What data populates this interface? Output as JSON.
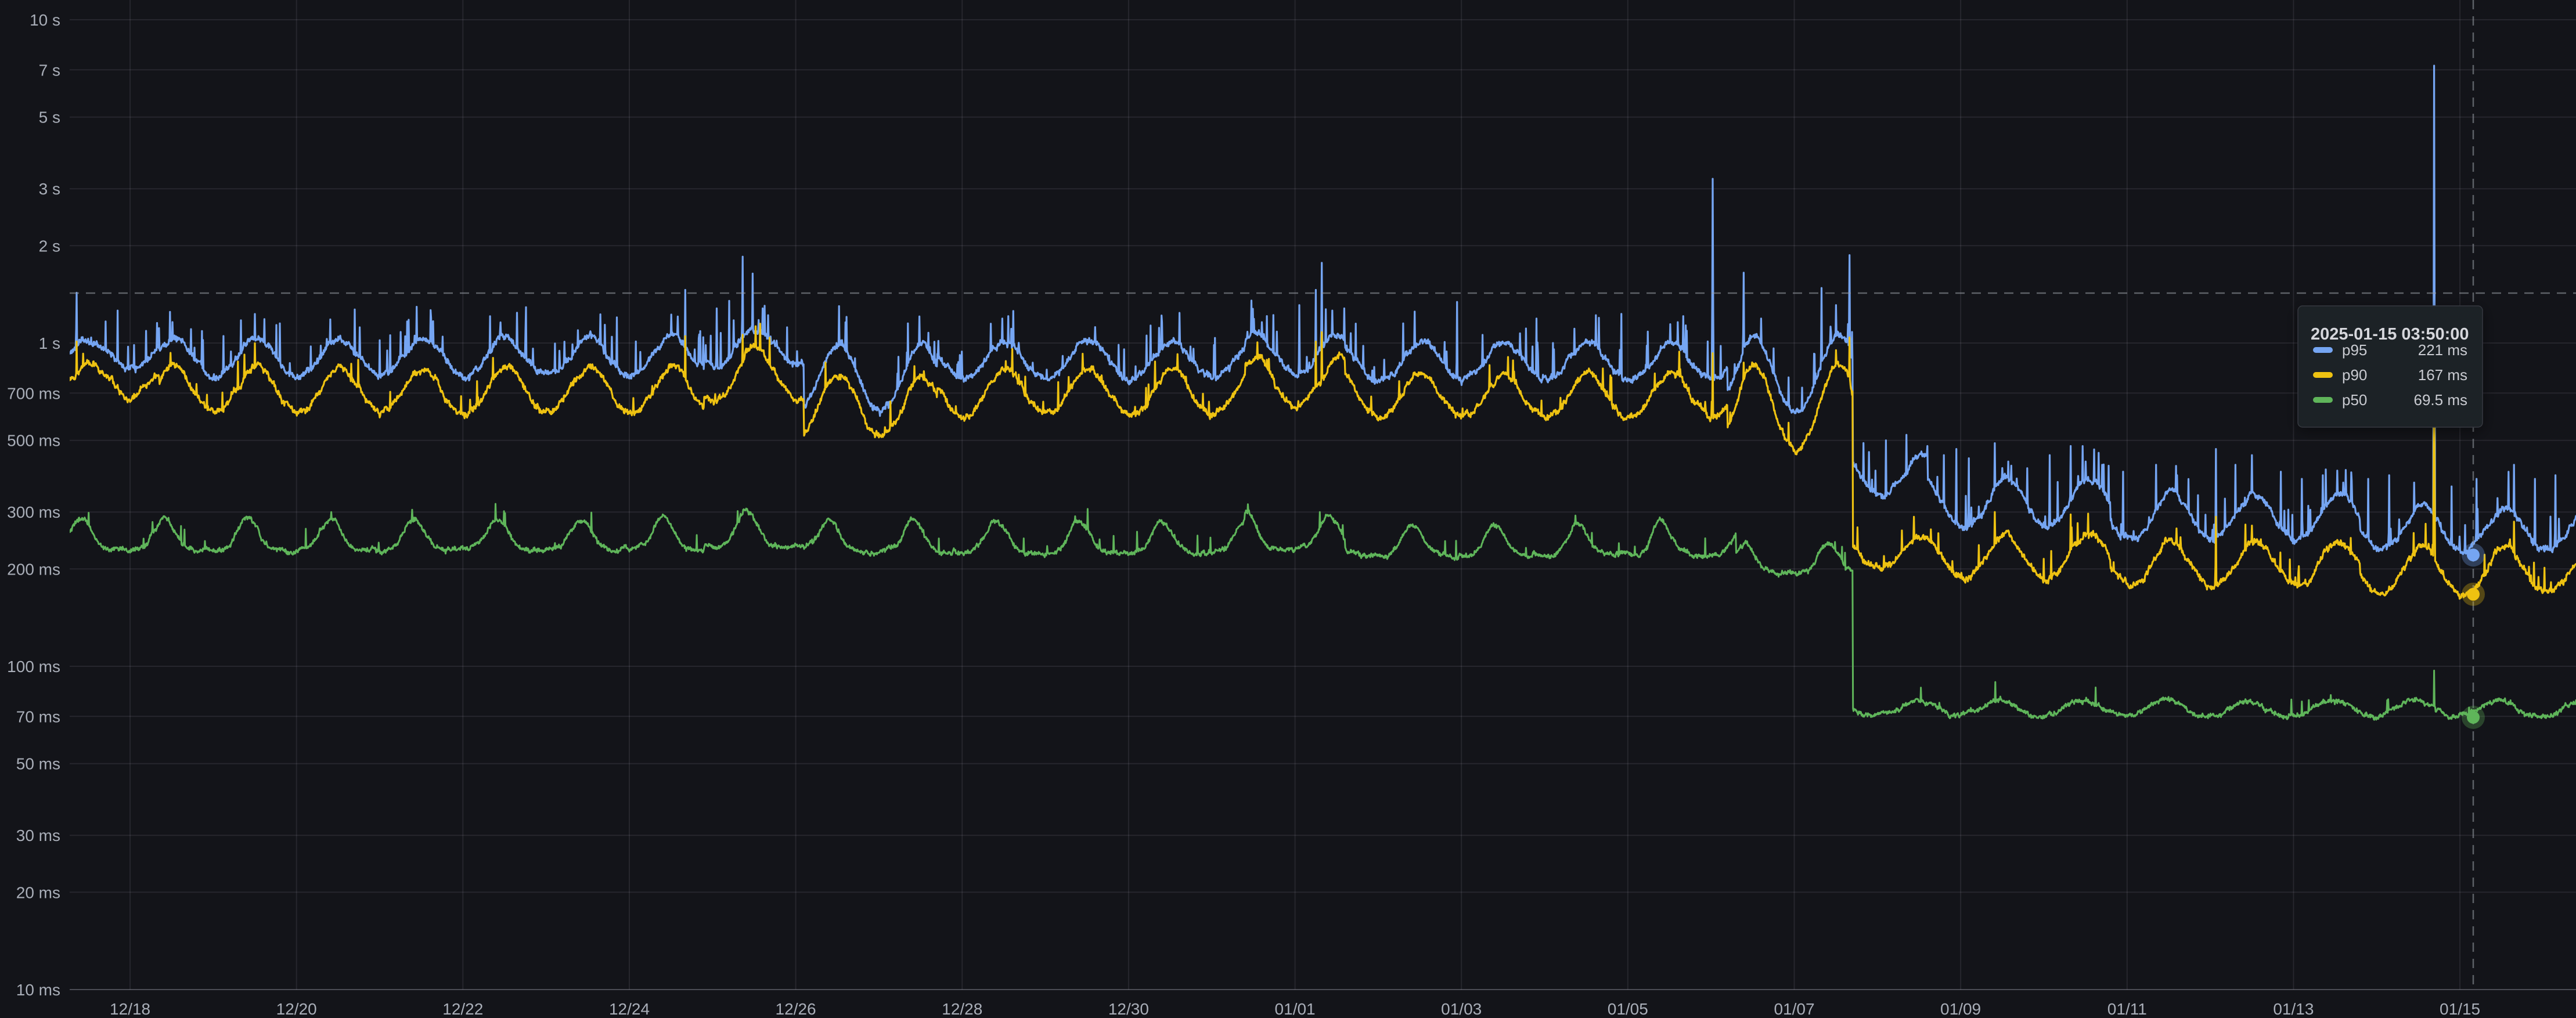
{
  "theme": {
    "background": "#131419",
    "grid_color": "rgba(204,210,222,0.10)",
    "axis_text_color": "#A9AEB8",
    "crosshair_color": "#9AA0A8",
    "tooltip_background": "#1E2127",
    "tooltip_border": "#35383F",
    "tooltip_text": "#D6D7DC"
  },
  "chart_data": {
    "type": "line",
    "title": "",
    "legend_position": "none",
    "grid": true,
    "x_axis": {
      "unit": "date",
      "range_days": [
        -0.726,
        29.395
      ],
      "ticks": [
        {
          "label": "12/18",
          "day": 0
        },
        {
          "label": "12/20",
          "day": 2
        },
        {
          "label": "12/22",
          "day": 4
        },
        {
          "label": "12/24",
          "day": 6
        },
        {
          "label": "12/26",
          "day": 8
        },
        {
          "label": "12/28",
          "day": 10
        },
        {
          "label": "12/30",
          "day": 12
        },
        {
          "label": "01/01",
          "day": 14
        },
        {
          "label": "01/03",
          "day": 16
        },
        {
          "label": "01/05",
          "day": 18
        },
        {
          "label": "01/07",
          "day": 20
        },
        {
          "label": "01/09",
          "day": 22
        },
        {
          "label": "01/11",
          "day": 24
        },
        {
          "label": "01/13",
          "day": 26
        },
        {
          "label": "01/15",
          "day": 28
        }
      ]
    },
    "y_axis": {
      "scale": "log10",
      "unit": "ms",
      "range_ms": [
        11500,
        8.5
      ],
      "ticks": [
        {
          "label": "10 s",
          "ms": 10000
        },
        {
          "label": "7 s",
          "ms": 7000
        },
        {
          "label": "5 s",
          "ms": 5000
        },
        {
          "label": "3 s",
          "ms": 3000
        },
        {
          "label": "2 s",
          "ms": 2000
        },
        {
          "label": "1 s",
          "ms": 1000
        },
        {
          "label": "700 ms",
          "ms": 700
        },
        {
          "label": "500 ms",
          "ms": 500
        },
        {
          "label": "300 ms",
          "ms": 300
        },
        {
          "label": "200 ms",
          "ms": 200
        },
        {
          "label": "100 ms",
          "ms": 100
        },
        {
          "label": "70 ms",
          "ms": 70
        },
        {
          "label": "50 ms",
          "ms": 50
        },
        {
          "label": "30 ms",
          "ms": 30
        },
        {
          "label": "20 ms",
          "ms": 20
        },
        {
          "label": "10 ms",
          "ms": 10
        }
      ]
    },
    "series": [
      {
        "name": "p95",
        "color": "#75A5F2",
        "line_width": 3.2,
        "seed": 11,
        "noise": 0.021,
        "micro_spike_prob": 0.05,
        "micro_spike_gain": 0.3,
        "segments": [
          {
            "t": [
              -0.73,
              0.35
            ],
            "low": 840,
            "high": 1020,
            "peak_hour": 12.5,
            "width_h": 5
          },
          {
            "t": [
              0.35,
              6.9
            ],
            "low": 775,
            "high": 1040,
            "peak_hour": 12.5,
            "width_h": 5
          },
          {
            "t": [
              6.9,
              8.1
            ],
            "low": 830,
            "high": 1120,
            "peak_hour": 12.5,
            "width_h": 5
          },
          {
            "t": [
              8.1,
              9.7
            ],
            "low": 600,
            "high": 1000,
            "peak_hour": 12.5,
            "width_h": 5
          },
          {
            "t": [
              9.7,
              13.4
            ],
            "low": 760,
            "high": 1020,
            "peak_hour": 12.5,
            "width_h": 5
          },
          {
            "t": [
              13.4,
              14.6
            ],
            "low": 790,
            "high": 1080,
            "peak_hour": 12.5,
            "width_h": 5
          },
          {
            "t": [
              14.6,
              19.2
            ],
            "low": 755,
            "high": 1005,
            "peak_hour": 12.5,
            "width_h": 5
          },
          {
            "t": [
              19.2,
              20.705
            ],
            "low": 580,
            "high": 1060,
            "peak_hour": 12.5,
            "width_h": 5
          },
          {
            "t": [
              20.705,
              21.6
            ],
            "low": 330,
            "high": 455,
            "peak_hour": 13,
            "width_h": 5
          },
          {
            "t": [
              21.6,
              23.8
            ],
            "low": 262,
            "high": 385,
            "peak_hour": 13,
            "width_h": 5
          },
          {
            "t": [
              23.8,
              26.8
            ],
            "low": 240,
            "high": 345,
            "peak_hour": 13,
            "width_h": 5
          },
          {
            "t": [
              26.8,
              29.4
            ],
            "low": 224,
            "high": 312,
            "peak_hour": 13,
            "width_h": 5
          }
        ],
        "spikes": [
          [
            -0.64,
            1430
          ],
          [
            -0.15,
            1260
          ],
          [
            1.8,
            1150
          ],
          [
            2.7,
            1270
          ],
          [
            3.35,
            1180
          ],
          [
            4.76,
            1290
          ],
          [
            5.85,
            1200
          ],
          [
            6.67,
            1460
          ],
          [
            7.05,
            1280
          ],
          [
            7.2,
            1350
          ],
          [
            7.36,
            1850
          ],
          [
            7.48,
            1640
          ],
          [
            7.6,
            1280
          ],
          [
            8.52,
            1300
          ],
          [
            9.35,
            1150
          ],
          [
            10.48,
            1190
          ],
          [
            11.6,
            1120
          ],
          [
            12.4,
            1160
          ],
          [
            13.6,
            1160
          ],
          [
            13.74,
            1220
          ],
          [
            14.05,
            1310
          ],
          [
            14.25,
            1460
          ],
          [
            14.32,
            1770
          ],
          [
            14.45,
            1260
          ],
          [
            15.3,
            1150
          ],
          [
            15.95,
            1340
          ],
          [
            16.9,
            1190
          ],
          [
            17.92,
            1230
          ],
          [
            18.6,
            1160
          ],
          [
            19.02,
            3220
          ],
          [
            19.39,
            1650
          ],
          [
            19.6,
            1190
          ],
          [
            20.33,
            1480
          ],
          [
            20.5,
            1310
          ],
          [
            20.665,
            1870
          ],
          [
            20.9,
            460
          ],
          [
            21.1,
            500
          ],
          [
            21.35,
            520
          ],
          [
            21.6,
            480
          ],
          [
            21.8,
            450
          ],
          [
            21.95,
            470
          ],
          [
            22.1,
            440
          ],
          [
            22.41,
            490
          ],
          [
            22.57,
            430
          ],
          [
            22.8,
            410
          ],
          [
            23.07,
            450
          ],
          [
            23.32,
            480
          ],
          [
            23.5,
            430
          ],
          [
            23.7,
            420
          ],
          [
            23.95,
            400
          ],
          [
            24.35,
            420
          ],
          [
            24.6,
            390
          ],
          [
            25.07,
            470
          ],
          [
            25.3,
            420
          ],
          [
            25.5,
            450
          ],
          [
            25.85,
            400
          ],
          [
            26.1,
            380
          ],
          [
            26.35,
            390
          ],
          [
            26.6,
            370
          ],
          [
            26.9,
            380
          ],
          [
            27.15,
            390
          ],
          [
            27.45,
            370
          ],
          [
            27.69,
            7210
          ],
          [
            27.9,
            360
          ],
          [
            28.2,
            380
          ],
          [
            28.65,
            420
          ],
          [
            28.9,
            380
          ],
          [
            29.15,
            390
          ]
        ]
      },
      {
        "name": "p90",
        "color": "#EEC211",
        "line_width": 3.2,
        "seed": 22,
        "noise": 0.02,
        "micro_spike_prob": 0.025,
        "micro_spike_gain": 0.22,
        "segments": [
          {
            "t": [
              -0.73,
              0.35
            ],
            "low": 680,
            "high": 880,
            "peak_hour": 12.5,
            "width_h": 5
          },
          {
            "t": [
              0.35,
              6.9
            ],
            "low": 595,
            "high": 845,
            "peak_hour": 12.5,
            "width_h": 5
          },
          {
            "t": [
              6.9,
              8.1
            ],
            "low": 640,
            "high": 985,
            "peak_hour": 12.5,
            "width_h": 5
          },
          {
            "t": [
              8.1,
              9.7
            ],
            "low": 497,
            "high": 805,
            "peak_hour": 12.5,
            "width_h": 5
          },
          {
            "t": [
              9.7,
              13.4
            ],
            "low": 585,
            "high": 830,
            "peak_hour": 12.5,
            "width_h": 5
          },
          {
            "t": [
              13.4,
              14.6
            ],
            "low": 612,
            "high": 895,
            "peak_hour": 12.5,
            "width_h": 5
          },
          {
            "t": [
              14.6,
              19.2
            ],
            "low": 572,
            "high": 815,
            "peak_hour": 12.5,
            "width_h": 5
          },
          {
            "t": [
              19.2,
              20.705
            ],
            "low": 445,
            "high": 860,
            "peak_hour": 12.5,
            "width_h": 5
          },
          {
            "t": [
              20.705,
              21.6
            ],
            "low": 196,
            "high": 256,
            "peak_hour": 13,
            "width_h": 5
          },
          {
            "t": [
              21.6,
              23.8
            ],
            "low": 182,
            "high": 258,
            "peak_hour": 13,
            "width_h": 5
          },
          {
            "t": [
              23.8,
              26.8
            ],
            "low": 172,
            "high": 245,
            "peak_hour": 13,
            "width_h": 5
          },
          {
            "t": [
              26.8,
              29.4
            ],
            "low": 163,
            "high": 234,
            "peak_hour": 13,
            "width_h": 5
          }
        ],
        "spikes": [
          [
            -0.64,
            1010
          ],
          [
            6.67,
            1050
          ],
          [
            7.36,
            1060
          ],
          [
            7.48,
            980
          ],
          [
            14.25,
            1010
          ],
          [
            14.32,
            1080
          ],
          [
            19.02,
            930
          ],
          [
            19.39,
            870
          ],
          [
            20.5,
            950
          ],
          [
            20.665,
            1040
          ],
          [
            22.41,
            300
          ],
          [
            23.32,
            295
          ],
          [
            25.07,
            290
          ],
          [
            27.69,
            1050
          ],
          [
            28.65,
            280
          ]
        ]
      },
      {
        "name": "p50",
        "color": "#5FB55A",
        "line_width": 3.0,
        "seed": 33,
        "noise": 0.015,
        "micro_spike_prob": 0.012,
        "micro_spike_gain": 0.15,
        "segments": [
          {
            "t": [
              -0.73,
              6.9
            ],
            "low": 228,
            "high": 285,
            "peak_hour": 9.8,
            "width_h": 3
          },
          {
            "t": [
              6.9,
              8.2
            ],
            "low": 233,
            "high": 302,
            "peak_hour": 9.8,
            "width_h": 3
          },
          {
            "t": [
              8.2,
              13.4
            ],
            "low": 224,
            "high": 282,
            "peak_hour": 9.8,
            "width_h": 3
          },
          {
            "t": [
              13.4,
              14.6
            ],
            "low": 230,
            "high": 296,
            "peak_hour": 9.8,
            "width_h": 3
          },
          {
            "t": [
              14.6,
              19.3
            ],
            "low": 219,
            "high": 276,
            "peak_hour": 9.8,
            "width_h": 3
          },
          {
            "t": [
              19.3,
              20.705
            ],
            "low": 192,
            "high": 240,
            "peak_hour": 9.8,
            "width_h": 3
          },
          {
            "t": [
              20.705,
              29.4
            ],
            "low": 70,
            "high": 79,
            "peak_hour": 11,
            "width_h": 4.5
          }
        ],
        "spikes": [
          [
            2.42,
            300
          ],
          [
            3.39,
            305
          ],
          [
            4.39,
            318
          ],
          [
            6.4,
            295
          ],
          [
            7.3,
            302
          ],
          [
            13.4,
            298
          ],
          [
            14.3,
            300
          ],
          [
            27.69,
            97
          ]
        ]
      }
    ],
    "crosshair": {
      "day": 28.16,
      "value_ms": 1427
    },
    "tooltip": {
      "title": "2025-01-15 03:50:00",
      "rows": [
        {
          "series": "p95",
          "value_text": "221 ms",
          "value_ms": 221
        },
        {
          "series": "p90",
          "value_text": "167 ms",
          "value_ms": 167
        },
        {
          "series": "p50",
          "value_text": "69.5 ms",
          "value_ms": 69.5
        }
      ]
    }
  }
}
